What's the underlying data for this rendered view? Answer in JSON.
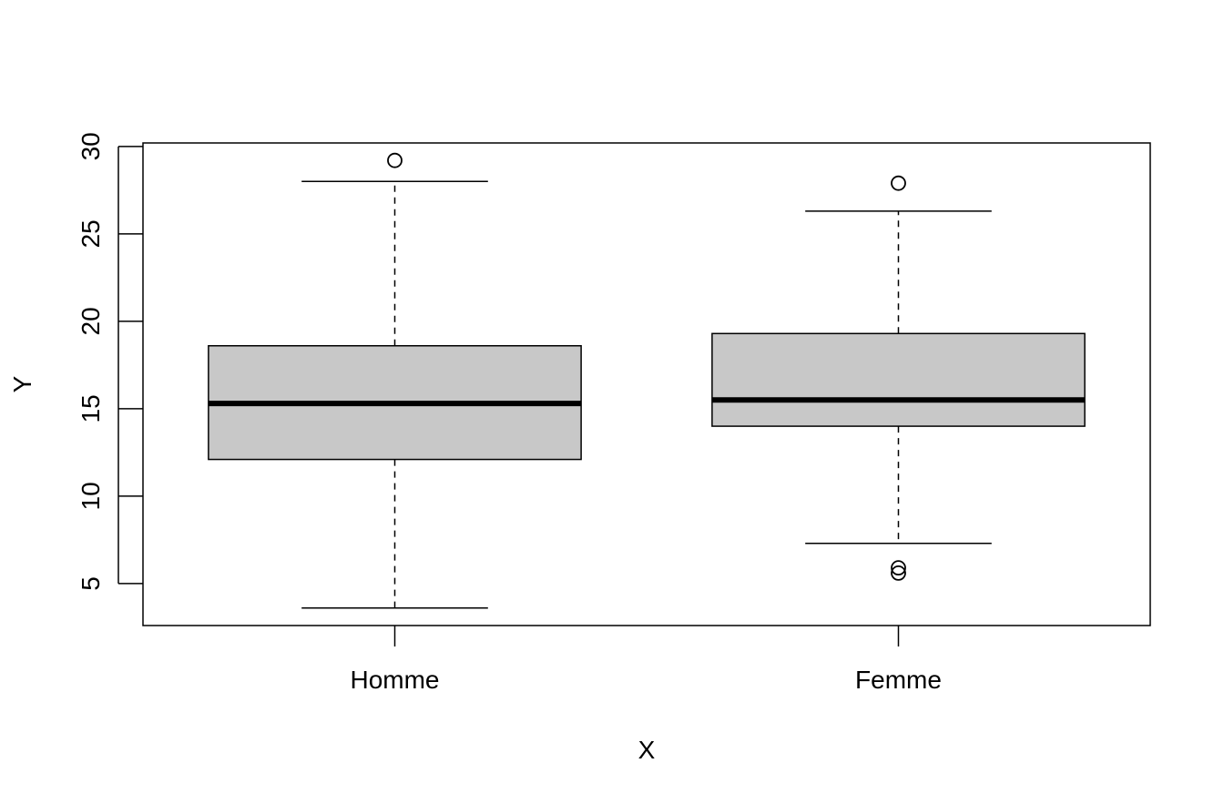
{
  "chart_data": {
    "type": "box",
    "title": "",
    "xlabel": "X",
    "ylabel": "Y",
    "ylim": [
      2.6,
      30.2
    ],
    "yticks": [
      "5",
      "10",
      "15",
      "20",
      "25",
      "30"
    ],
    "grid": false,
    "box_fill": "#c8c8c8",
    "categories": [
      "Homme",
      "Femme"
    ],
    "boxes": [
      {
        "name": "Homme",
        "whisker_low": 3.6,
        "q1": 12.1,
        "median": 15.3,
        "q3": 18.6,
        "whisker_high": 28.0,
        "outliers": [
          29.2
        ]
      },
      {
        "name": "Femme",
        "whisker_low": 7.3,
        "q1": 14.0,
        "median": 15.5,
        "q3": 19.3,
        "whisker_high": 26.3,
        "outliers": [
          27.9,
          5.9,
          5.6
        ]
      }
    ]
  }
}
